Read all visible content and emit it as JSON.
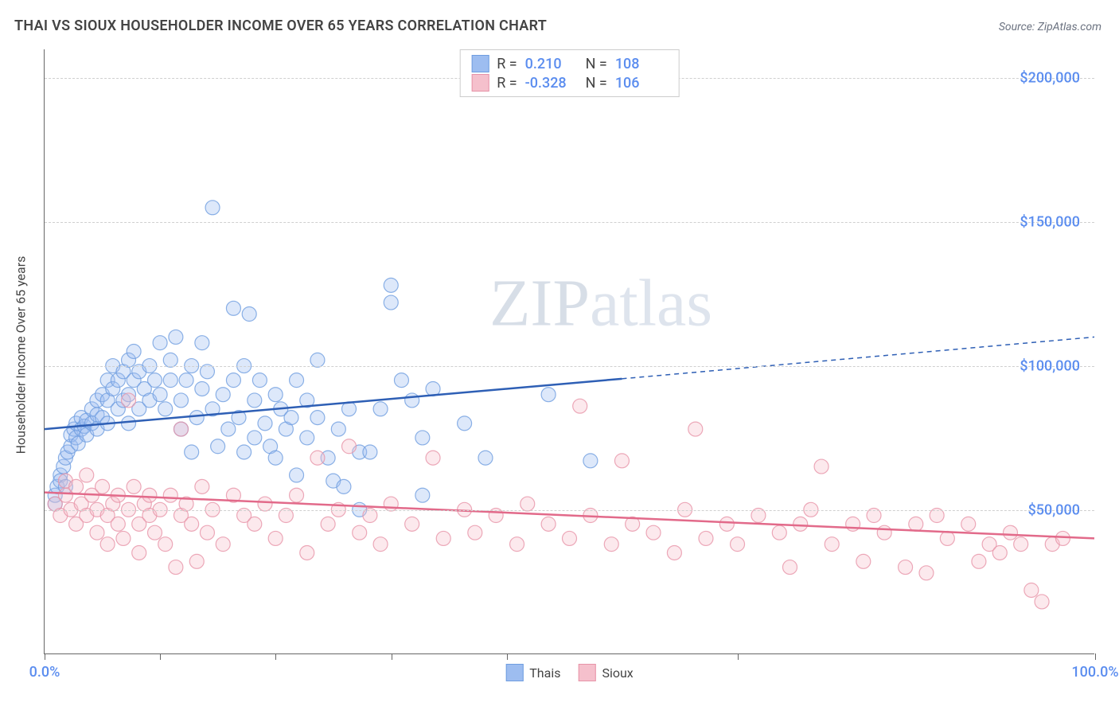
{
  "title": "THAI VS SIOUX HOUSEHOLDER INCOME OVER 65 YEARS CORRELATION CHART",
  "source": "Source: ZipAtlas.com",
  "y_axis_title": "Householder Income Over 65 years",
  "watermark": "ZIPatlas",
  "chart": {
    "type": "scatter",
    "xlim": [
      0,
      100
    ],
    "ylim": [
      0,
      210000
    ],
    "x_ticks_pct": [
      0,
      11,
      22,
      33,
      44,
      66,
      100
    ],
    "x_labels": {
      "0": "0.0%",
      "100": "100.0%"
    },
    "y_gridlines": [
      50000,
      100000,
      150000,
      200000
    ],
    "y_labels": {
      "50000": "$50,000",
      "100000": "$100,000",
      "150000": "$150,000",
      "200000": "$200,000"
    },
    "background_color": "#ffffff",
    "grid_color": "#d0d0d0",
    "axis_color": "#666666",
    "marker_radius": 9,
    "marker_fill_opacity": 0.35,
    "marker_stroke_opacity": 0.8,
    "line_width": 2.5,
    "series": [
      {
        "name": "Thais",
        "color_fill": "#9dbdf0",
        "color_stroke": "#6f9de0",
        "line_color": "#2e5fb5",
        "r": "0.210",
        "n": "108",
        "regression": {
          "x1": 0,
          "y1": 78000,
          "x_solid_end": 55,
          "y_solid_end": 95500,
          "x2": 100,
          "y2": 110000
        },
        "points": [
          [
            1,
            52000
          ],
          [
            1,
            55000
          ],
          [
            1.2,
            58000
          ],
          [
            1.5,
            62000
          ],
          [
            1.5,
            60000
          ],
          [
            1.8,
            65000
          ],
          [
            2,
            68000
          ],
          [
            2,
            58000
          ],
          [
            2.2,
            70000
          ],
          [
            2.5,
            72000
          ],
          [
            2.5,
            76000
          ],
          [
            2.8,
            78000
          ],
          [
            3,
            80000
          ],
          [
            3,
            75000
          ],
          [
            3.2,
            73000
          ],
          [
            3.5,
            78000
          ],
          [
            3.5,
            82000
          ],
          [
            3.8,
            79000
          ],
          [
            4,
            81000
          ],
          [
            4,
            76000
          ],
          [
            4.5,
            85000
          ],
          [
            4.5,
            80000
          ],
          [
            5,
            88000
          ],
          [
            5,
            83000
          ],
          [
            5,
            78000
          ],
          [
            5.5,
            90000
          ],
          [
            5.5,
            82000
          ],
          [
            6,
            95000
          ],
          [
            6,
            88000
          ],
          [
            6,
            80000
          ],
          [
            6.5,
            92000
          ],
          [
            6.5,
            100000
          ],
          [
            7,
            85000
          ],
          [
            7,
            95000
          ],
          [
            7.5,
            98000
          ],
          [
            7.5,
            88000
          ],
          [
            8,
            102000
          ],
          [
            8,
            90000
          ],
          [
            8,
            80000
          ],
          [
            8.5,
            95000
          ],
          [
            8.5,
            105000
          ],
          [
            9,
            98000
          ],
          [
            9,
            85000
          ],
          [
            9.5,
            92000
          ],
          [
            10,
            100000
          ],
          [
            10,
            88000
          ],
          [
            10.5,
            95000
          ],
          [
            11,
            108000
          ],
          [
            11,
            90000
          ],
          [
            11.5,
            85000
          ],
          [
            12,
            95000
          ],
          [
            12,
            102000
          ],
          [
            12.5,
            110000
          ],
          [
            13,
            88000
          ],
          [
            13,
            78000
          ],
          [
            13.5,
            95000
          ],
          [
            14,
            100000
          ],
          [
            14,
            70000
          ],
          [
            14.5,
            82000
          ],
          [
            15,
            92000
          ],
          [
            15,
            108000
          ],
          [
            15.5,
            98000
          ],
          [
            16,
            85000
          ],
          [
            16,
            155000
          ],
          [
            16.5,
            72000
          ],
          [
            17,
            90000
          ],
          [
            17.5,
            78000
          ],
          [
            18,
            120000
          ],
          [
            18,
            95000
          ],
          [
            18.5,
            82000
          ],
          [
            19,
            70000
          ],
          [
            19,
            100000
          ],
          [
            19.5,
            118000
          ],
          [
            20,
            88000
          ],
          [
            20,
            75000
          ],
          [
            20.5,
            95000
          ],
          [
            21,
            80000
          ],
          [
            21.5,
            72000
          ],
          [
            22,
            90000
          ],
          [
            22,
            68000
          ],
          [
            22.5,
            85000
          ],
          [
            23,
            78000
          ],
          [
            23.5,
            82000
          ],
          [
            24,
            95000
          ],
          [
            24,
            62000
          ],
          [
            25,
            75000
          ],
          [
            25,
            88000
          ],
          [
            26,
            82000
          ],
          [
            26,
            102000
          ],
          [
            27,
            68000
          ],
          [
            27.5,
            60000
          ],
          [
            28,
            78000
          ],
          [
            28.5,
            58000
          ],
          [
            29,
            85000
          ],
          [
            30,
            70000
          ],
          [
            30,
            50000
          ],
          [
            31,
            70000
          ],
          [
            32,
            85000
          ],
          [
            33,
            128000
          ],
          [
            33,
            122000
          ],
          [
            34,
            95000
          ],
          [
            35,
            88000
          ],
          [
            36,
            75000
          ],
          [
            36,
            55000
          ],
          [
            37,
            92000
          ],
          [
            40,
            80000
          ],
          [
            42,
            68000
          ],
          [
            48,
            90000
          ],
          [
            52,
            67000
          ]
        ]
      },
      {
        "name": "Sioux",
        "color_fill": "#f5c0cc",
        "color_stroke": "#e793a8",
        "line_color": "#e26a8a",
        "r": "-0.328",
        "n": "106",
        "regression": {
          "x1": 0,
          "y1": 56000,
          "x_solid_end": 100,
          "y_solid_end": 40000,
          "x2": 100,
          "y2": 40000
        },
        "points": [
          [
            1,
            52000
          ],
          [
            1.5,
            48000
          ],
          [
            2,
            55000
          ],
          [
            2,
            60000
          ],
          [
            2.5,
            50000
          ],
          [
            3,
            45000
          ],
          [
            3,
            58000
          ],
          [
            3.5,
            52000
          ],
          [
            4,
            48000
          ],
          [
            4,
            62000
          ],
          [
            4.5,
            55000
          ],
          [
            5,
            50000
          ],
          [
            5,
            42000
          ],
          [
            5.5,
            58000
          ],
          [
            6,
            48000
          ],
          [
            6,
            38000
          ],
          [
            6.5,
            52000
          ],
          [
            7,
            55000
          ],
          [
            7,
            45000
          ],
          [
            7.5,
            40000
          ],
          [
            8,
            50000
          ],
          [
            8,
            88000
          ],
          [
            8.5,
            58000
          ],
          [
            9,
            45000
          ],
          [
            9,
            35000
          ],
          [
            9.5,
            52000
          ],
          [
            10,
            48000
          ],
          [
            10,
            55000
          ],
          [
            10.5,
            42000
          ],
          [
            11,
            50000
          ],
          [
            11.5,
            38000
          ],
          [
            12,
            55000
          ],
          [
            12.5,
            30000
          ],
          [
            13,
            48000
          ],
          [
            13,
            78000
          ],
          [
            13.5,
            52000
          ],
          [
            14,
            45000
          ],
          [
            14.5,
            32000
          ],
          [
            15,
            58000
          ],
          [
            15.5,
            42000
          ],
          [
            16,
            50000
          ],
          [
            17,
            38000
          ],
          [
            18,
            55000
          ],
          [
            19,
            48000
          ],
          [
            20,
            45000
          ],
          [
            21,
            52000
          ],
          [
            22,
            40000
          ],
          [
            23,
            48000
          ],
          [
            24,
            55000
          ],
          [
            25,
            35000
          ],
          [
            26,
            68000
          ],
          [
            27,
            45000
          ],
          [
            28,
            50000
          ],
          [
            29,
            72000
          ],
          [
            30,
            42000
          ],
          [
            31,
            48000
          ],
          [
            32,
            38000
          ],
          [
            33,
            52000
          ],
          [
            35,
            45000
          ],
          [
            37,
            68000
          ],
          [
            38,
            40000
          ],
          [
            40,
            50000
          ],
          [
            41,
            42000
          ],
          [
            43,
            48000
          ],
          [
            45,
            38000
          ],
          [
            46,
            52000
          ],
          [
            48,
            45000
          ],
          [
            50,
            40000
          ],
          [
            51,
            86000
          ],
          [
            52,
            48000
          ],
          [
            54,
            38000
          ],
          [
            55,
            67000
          ],
          [
            56,
            45000
          ],
          [
            58,
            42000
          ],
          [
            60,
            35000
          ],
          [
            61,
            50000
          ],
          [
            62,
            78000
          ],
          [
            63,
            40000
          ],
          [
            65,
            45000
          ],
          [
            66,
            38000
          ],
          [
            68,
            48000
          ],
          [
            70,
            42000
          ],
          [
            71,
            30000
          ],
          [
            72,
            45000
          ],
          [
            73,
            50000
          ],
          [
            74,
            65000
          ],
          [
            75,
            38000
          ],
          [
            77,
            45000
          ],
          [
            78,
            32000
          ],
          [
            79,
            48000
          ],
          [
            80,
            42000
          ],
          [
            82,
            30000
          ],
          [
            83,
            45000
          ],
          [
            84,
            28000
          ],
          [
            85,
            48000
          ],
          [
            86,
            40000
          ],
          [
            88,
            45000
          ],
          [
            89,
            32000
          ],
          [
            90,
            38000
          ],
          [
            91,
            35000
          ],
          [
            92,
            42000
          ],
          [
            93,
            38000
          ],
          [
            94,
            22000
          ],
          [
            95,
            18000
          ],
          [
            96,
            38000
          ],
          [
            97,
            40000
          ]
        ]
      }
    ]
  },
  "legend_bottom": [
    {
      "label": "Thais",
      "fill": "#9dbdf0",
      "stroke": "#6f9de0"
    },
    {
      "label": "Sioux",
      "fill": "#f5c0cc",
      "stroke": "#e793a8"
    }
  ]
}
